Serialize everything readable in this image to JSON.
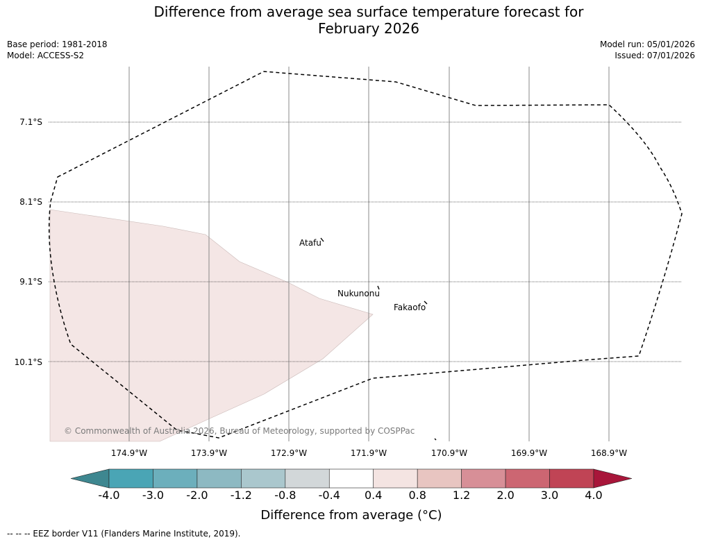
{
  "header": {
    "title": "Difference from average sea surface temperature forecast for\nFebruary 2026",
    "base_period": "Base period: 1981-2018",
    "model": "Model: ACCESS-S2",
    "model_run": "Model run: 05/01/2026",
    "issued": "Issued: 07/01/2026"
  },
  "map": {
    "lat_labels": [
      "7.1°S",
      "8.1°S",
      "9.1°S",
      "10.1°S"
    ],
    "lon_labels": [
      "174.9°W",
      "173.9°W",
      "172.9°W",
      "171.9°W",
      "170.9°W",
      "169.9°W",
      "168.9°W"
    ],
    "places": [
      {
        "name": "Atafu"
      },
      {
        "name": "Nukunonu"
      },
      {
        "name": "Fakaofo"
      }
    ],
    "copyright": "© Commonwealth of Australia 2026, Bureau of Meteorology, supported by COSPPac",
    "anomaly_fill_color": "#f4e6e5"
  },
  "colorbar": {
    "labels": [
      "-4.0",
      "-3.0",
      "-2.0",
      "-1.2",
      "-0.8",
      "-0.4",
      "0.4",
      "0.8",
      "1.2",
      "2.0",
      "3.0",
      "4.0"
    ],
    "colors": [
      "#4aa5b5",
      "#6cafbc",
      "#8db9c2",
      "#aac7cd",
      "#d2d7d9",
      "#ffffff",
      "#f4e4e2",
      "#e8c5c1",
      "#d78f97",
      "#cc6672",
      "#c04455"
    ],
    "under_color": "#3e8790",
    "over_color": "#a8163a",
    "title": "Difference from average (°C)"
  },
  "footer": {
    "legend": "--  --  -- EEZ border V11 (Flanders Marine Institute, 2019)."
  }
}
